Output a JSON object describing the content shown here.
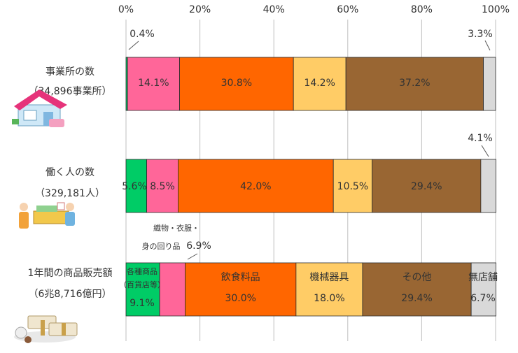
{
  "chart_data": {
    "type": "bar",
    "orientation": "horizontal",
    "stacked": true,
    "xlim": [
      0,
      100
    ],
    "x_ticks": [
      "0%",
      "20%",
      "40%",
      "60%",
      "80%",
      "100%"
    ],
    "grid": true,
    "rows": [
      {
        "label": "事業所の数",
        "sublabel": "（34,896事業所）",
        "icon": "store-house-icon"
      },
      {
        "label": "働く人の数",
        "sublabel": "（329,181人）",
        "icon": "shop-workers-icon"
      },
      {
        "label": "1年間の商品販売額",
        "sublabel": "（6兆8,716億円）",
        "icon": "money-bundles-icon"
      }
    ],
    "series": [
      {
        "key": "department",
        "color": "#00cc66",
        "values": [
          0.4,
          5.6,
          9.1
        ],
        "labels": [
          "0.4%",
          "5.6%",
          "9.1%"
        ],
        "category_lines": [
          "各種商品",
          "（百貨店等）"
        ]
      },
      {
        "key": "textile",
        "color": "#ff6699",
        "values": [
          14.1,
          8.5,
          6.9
        ],
        "labels": [
          "14.1%",
          "8.5%",
          "6.9%"
        ],
        "category_lines": [
          "織物・衣服・",
          "身の回り品"
        ]
      },
      {
        "key": "food",
        "color": "#ff6600",
        "values": [
          30.8,
          42.0,
          30.0
        ],
        "labels": [
          "30.8%",
          "42.0%",
          "30.0%"
        ],
        "category_lines": [
          "飲食料品"
        ]
      },
      {
        "key": "machinery",
        "color": "#ffcc66",
        "values": [
          14.2,
          10.5,
          18.0
        ],
        "labels": [
          "14.2%",
          "10.5%",
          "18.0%"
        ],
        "category_lines": [
          "機械器具"
        ]
      },
      {
        "key": "other",
        "color": "#996633",
        "values": [
          37.2,
          29.4,
          29.4
        ],
        "labels": [
          "37.2%",
          "29.4%",
          "29.4%"
        ],
        "category_lines": [
          "その他"
        ]
      },
      {
        "key": "nonstore",
        "color": "#d9d9d9",
        "values": [
          3.3,
          4.1,
          6.7
        ],
        "labels": [
          "3.3%",
          "4.1%",
          "6.7%"
        ],
        "category_lines": [
          "無店舗"
        ]
      }
    ]
  }
}
